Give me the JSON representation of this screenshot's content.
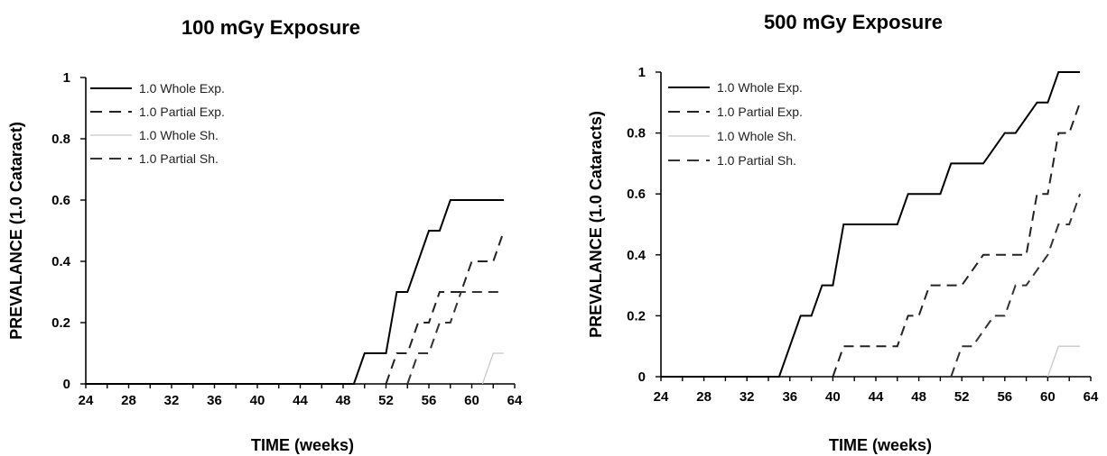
{
  "chart_data": [
    {
      "type": "line",
      "title": "100 mGy Exposure",
      "xlabel": "TIME (weeks)",
      "ylabel": "PREVALANCE (1.0 Cataract)",
      "xlim": [
        24,
        64
      ],
      "ylim": [
        0,
        1
      ],
      "xticks": [
        "24",
        "28",
        "32",
        "36",
        "40",
        "44",
        "48",
        "52",
        "56",
        "60",
        "64"
      ],
      "yticks": [
        "0",
        "0.2",
        "0.4",
        "0.6",
        "0.8",
        "1"
      ],
      "grid": false,
      "legend_position": "top-left",
      "series": [
        {
          "name": "1.0 Whole Exp.",
          "style": "solid",
          "color": "#000000",
          "x": [
            24,
            49,
            50,
            52,
            53,
            54,
            56,
            57,
            58,
            63
          ],
          "y": [
            0,
            0,
            0.1,
            0.1,
            0.3,
            0.3,
            0.5,
            0.5,
            0.6,
            0.6
          ]
        },
        {
          "name": "1.0 Partial Exp.",
          "style": "dashed",
          "color": "#222222",
          "x": [
            52,
            53,
            54,
            55,
            56,
            57,
            58,
            59,
            60,
            62,
            63
          ],
          "y": [
            0,
            0.1,
            0.1,
            0.2,
            0.2,
            0.3,
            0.3,
            0.3,
            0.4,
            0.4,
            0.5
          ]
        },
        {
          "name": "1.0 Whole Sh.",
          "style": "solid-light",
          "color": "#c8c8c8",
          "x": [
            61,
            62,
            63
          ],
          "y": [
            0,
            0.1,
            0.1
          ]
        },
        {
          "name": "1.0 Partial Sh.",
          "style": "dashed",
          "color": "#333333",
          "x": [
            54,
            55,
            56,
            57,
            58,
            59,
            60,
            63
          ],
          "y": [
            0,
            0.1,
            0.1,
            0.2,
            0.2,
            0.3,
            0.3,
            0.3
          ]
        }
      ]
    },
    {
      "type": "line",
      "title": "500 mGy Exposure",
      "xlabel": "TIME (weeks)",
      "ylabel": "PREVALANCE (1.0 Cataracts)",
      "xlim": [
        24,
        64
      ],
      "ylim": [
        0,
        1
      ],
      "xticks": [
        "24",
        "28",
        "32",
        "36",
        "40",
        "44",
        "48",
        "52",
        "56",
        "60",
        "64"
      ],
      "yticks": [
        "0",
        "0.2",
        "0.4",
        "0.6",
        "0.8",
        "1"
      ],
      "grid": false,
      "legend_position": "top-left",
      "series": [
        {
          "name": "1.0 Whole Exp.",
          "style": "solid",
          "color": "#000000",
          "x": [
            24,
            35,
            37,
            38,
            39,
            40,
            41,
            46,
            47,
            50,
            51,
            53,
            54,
            56,
            57,
            59,
            60,
            61,
            63
          ],
          "y": [
            0,
            0,
            0.2,
            0.2,
            0.3,
            0.3,
            0.5,
            0.5,
            0.6,
            0.6,
            0.7,
            0.7,
            0.7,
            0.8,
            0.8,
            0.9,
            0.9,
            1.0,
            1.0
          ]
        },
        {
          "name": "1.0 Partial Exp.",
          "style": "dashed",
          "color": "#222222",
          "x": [
            40,
            41,
            46,
            47,
            48,
            49,
            50,
            52,
            53,
            54,
            55,
            57,
            58,
            59,
            60,
            61,
            62,
            63
          ],
          "y": [
            0,
            0.1,
            0.1,
            0.2,
            0.2,
            0.3,
            0.3,
            0.3,
            0.35,
            0.4,
            0.4,
            0.4,
            0.4,
            0.6,
            0.6,
            0.8,
            0.8,
            0.9
          ]
        },
        {
          "name": "1.0 Whole Sh.",
          "style": "solid-light",
          "color": "#c8c8c8",
          "x": [
            60,
            61,
            63
          ],
          "y": [
            0,
            0.1,
            0.1
          ]
        },
        {
          "name": "1.0 Partial Sh.",
          "style": "dashed",
          "color": "#333333",
          "x": [
            51,
            52,
            53,
            55,
            56,
            57,
            58,
            59,
            60,
            61,
            62,
            63
          ],
          "y": [
            0,
            0.1,
            0.1,
            0.2,
            0.2,
            0.3,
            0.3,
            0.35,
            0.4,
            0.5,
            0.5,
            0.6
          ]
        }
      ]
    }
  ]
}
